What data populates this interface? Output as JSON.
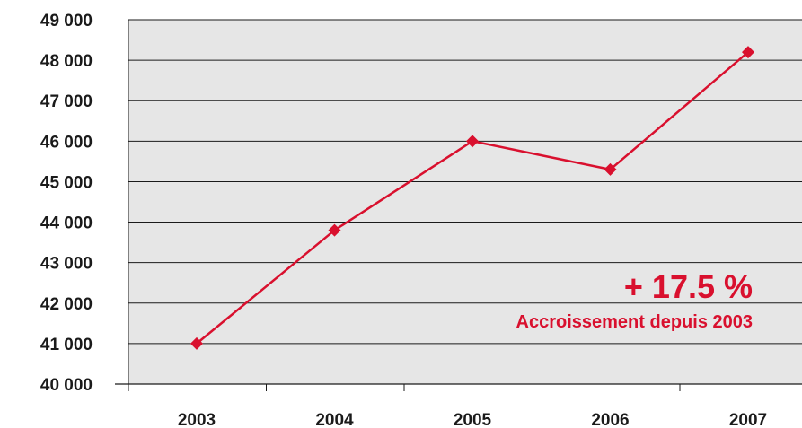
{
  "chart_data": {
    "type": "line",
    "title": "",
    "xlabel": "",
    "ylabel": "",
    "categories": [
      "2003",
      "2004",
      "2005",
      "2006",
      "2007"
    ],
    "series": [
      {
        "values": [
          41000,
          43800,
          46000,
          45300,
          48200
        ]
      }
    ],
    "y_tick_labels": [
      "40 000",
      "41 000",
      "42 000",
      "43 000",
      "44 000",
      "45 000",
      "46 000",
      "47 000",
      "48 000",
      "49 000"
    ],
    "ylim": [
      40000,
      49000
    ],
    "ytick_step": 1000,
    "grid": "horizontal",
    "annotation": {
      "headline": "+ 17.5 %",
      "subtext": "Accroissement depuis 2003"
    }
  },
  "colors": {
    "plot_background": "#e6e6e6",
    "series_line": "#d9102e",
    "grid": "#1a1a1a",
    "axis_text": "#1a1a1a"
  }
}
